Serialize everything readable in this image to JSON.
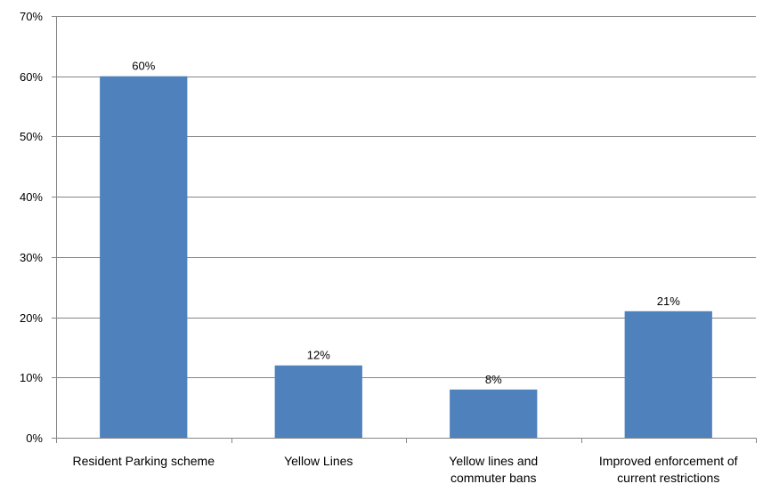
{
  "chart_data": {
    "type": "bar",
    "categories": [
      [
        "Resident Parking scheme"
      ],
      [
        "Yellow Lines"
      ],
      [
        "Yellow lines and",
        "commuter bans"
      ],
      [
        "Improved enforcement of",
        "current restrictions"
      ]
    ],
    "values": [
      60,
      12,
      8,
      21
    ],
    "value_unit": "%",
    "data_labels": [
      "60%",
      "12%",
      "8%",
      "21%"
    ],
    "ylim": [
      0,
      70
    ],
    "y_ticks": [
      "0%",
      "10%",
      "20%",
      "30%",
      "40%",
      "50%",
      "60%",
      "70%"
    ],
    "grid": true,
    "legend": "none",
    "bar_color": "#4F81BD",
    "grid_color": "#868686",
    "axis_color": "#868686"
  }
}
